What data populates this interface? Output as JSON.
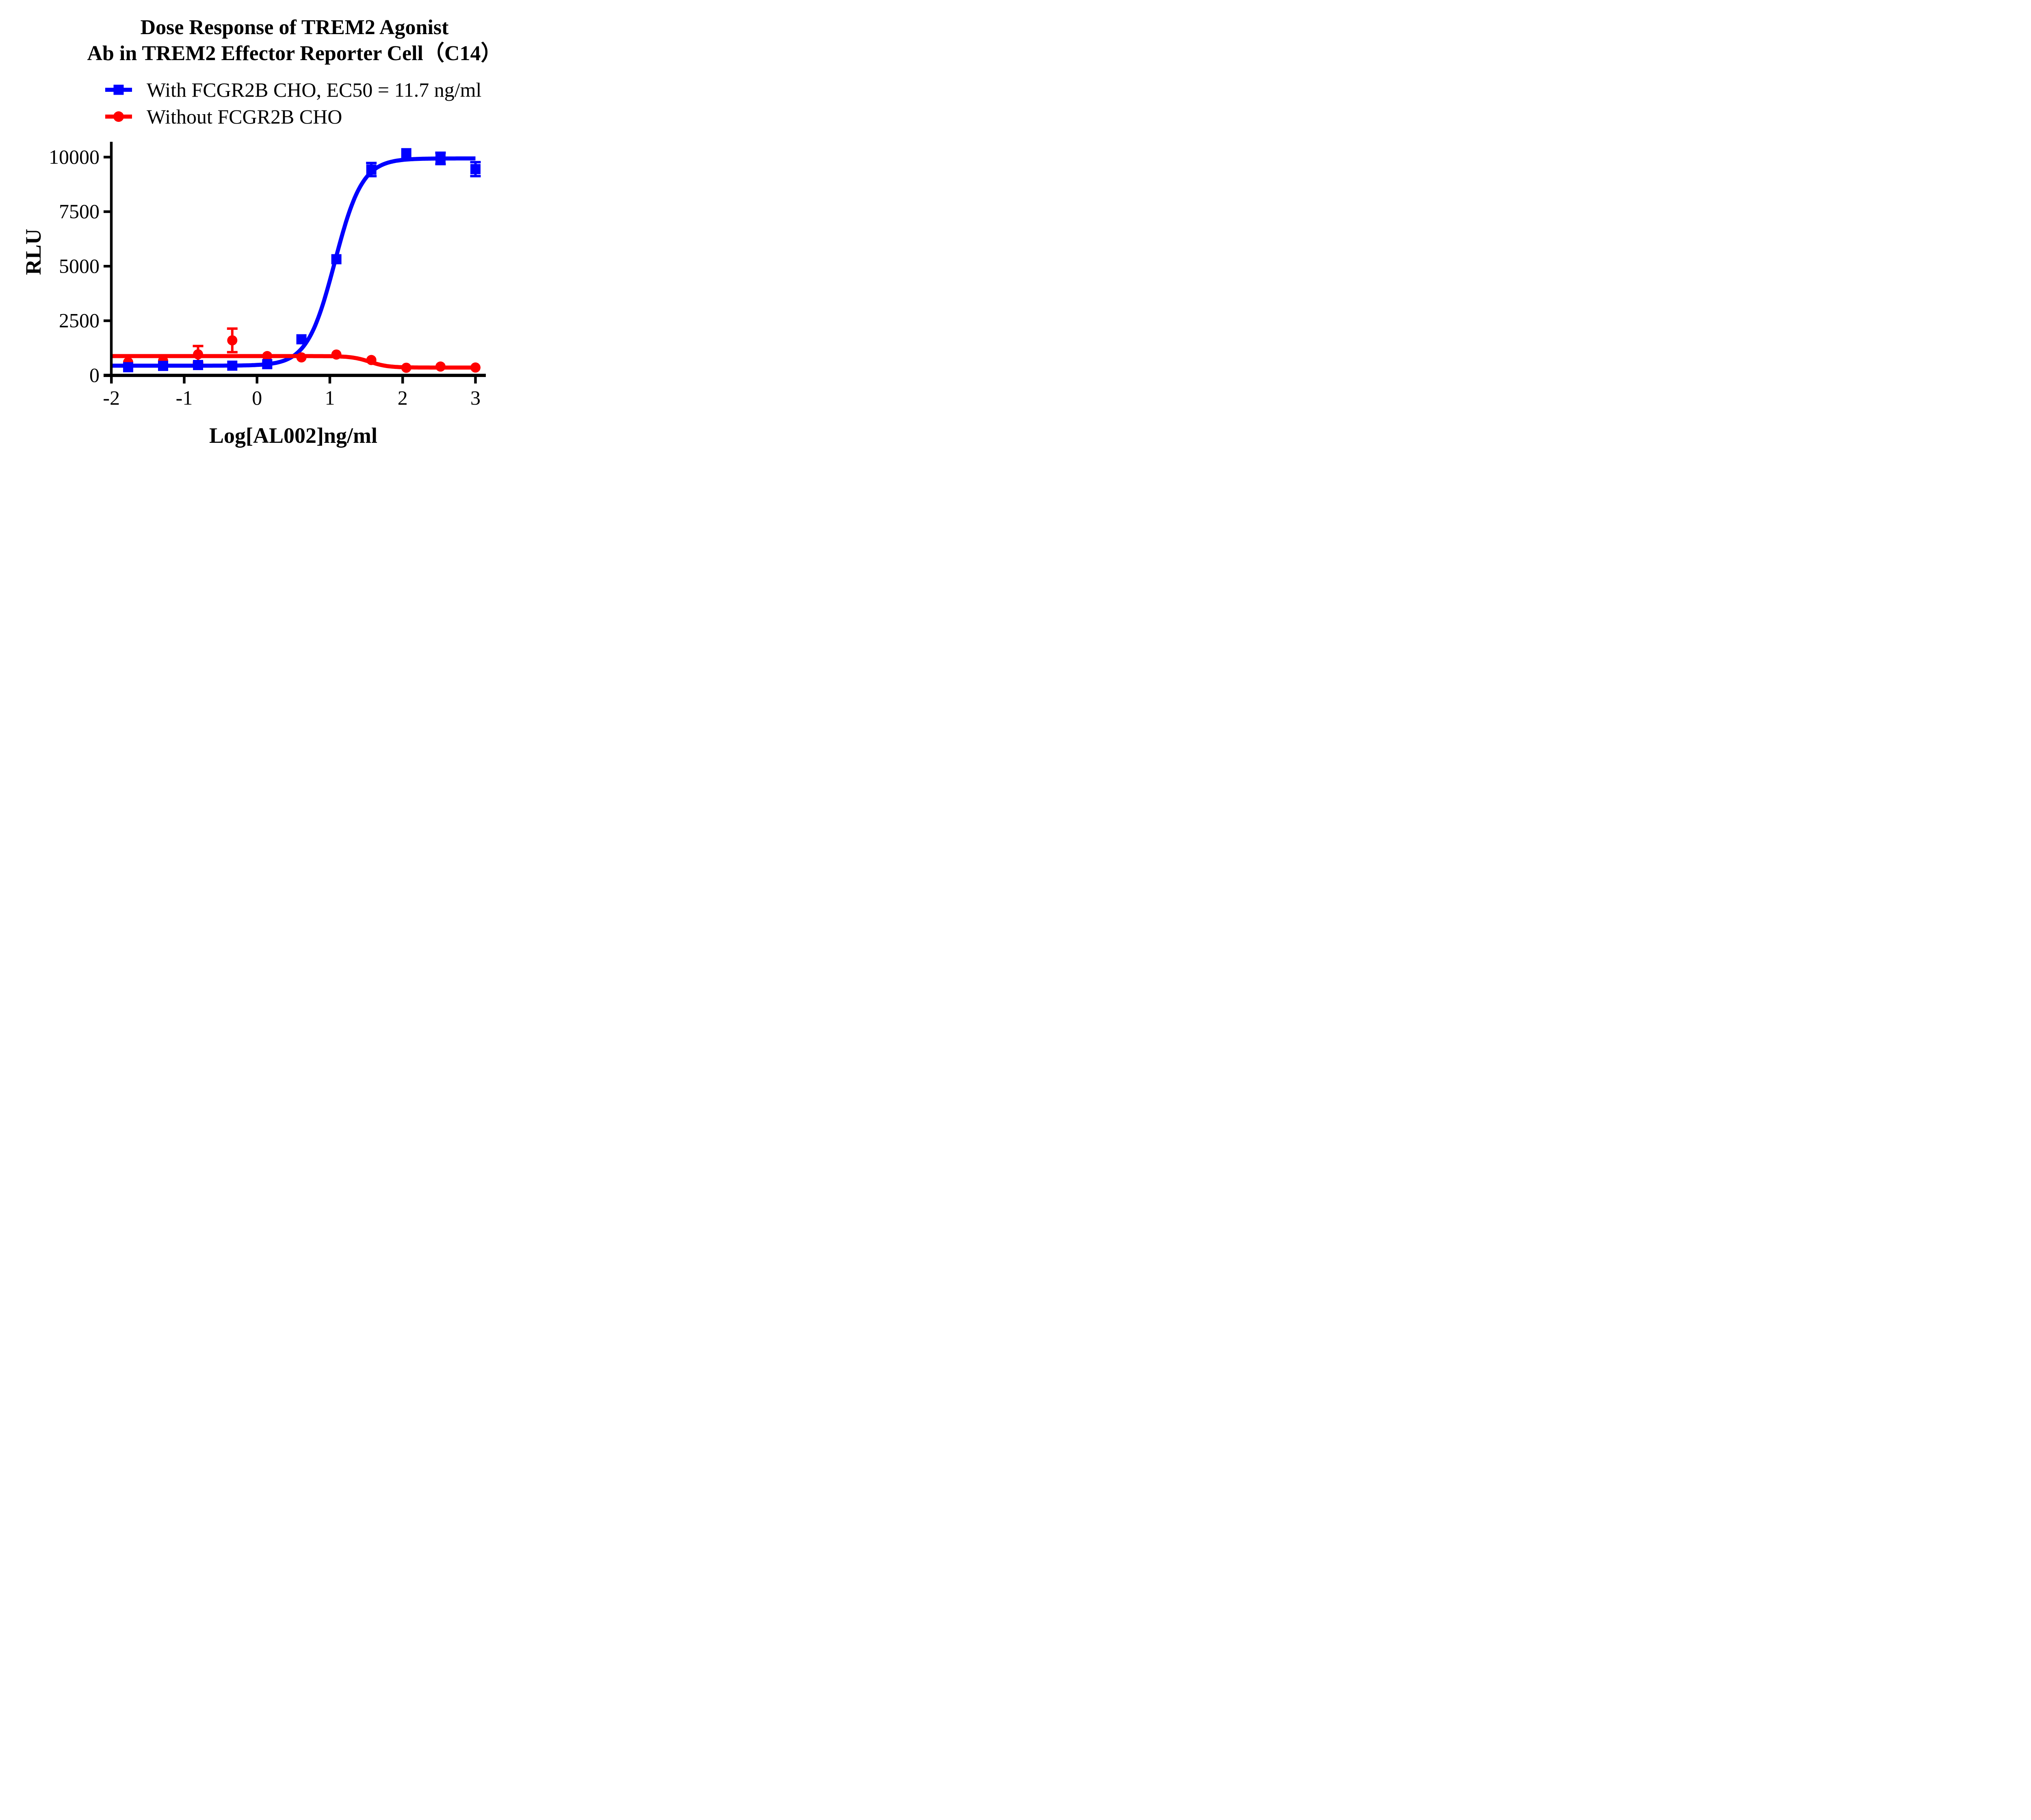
{
  "title": {
    "line1": "Dose Response of TREM2 Agonist",
    "line2": "Ab in TREM2 Effector Reporter Cell（C14）"
  },
  "chart_data": {
    "type": "line",
    "title": "Dose Response of TREM2 Agonist Ab in TREM2 Effector Reporter Cell（C14）",
    "title_lines": [
      "Dose Response of TREM2 Agonist",
      "Ab in TREM2 Effector Reporter Cell（C14）"
    ],
    "xlabel": "Log[AL002]ng/ml",
    "ylabel": "RLU",
    "x_ticks": [
      -2,
      -1,
      0,
      1,
      2,
      3
    ],
    "y_ticks": [
      0,
      2500,
      5000,
      7500,
      10000
    ],
    "ylim": [
      0,
      10000
    ],
    "xlim": [
      -2,
      3
    ],
    "grid": false,
    "legend_position": "top-left",
    "axis_color": "#000000",
    "background": "#FFFFFF",
    "series": [
      {
        "name": "With FCGR2B CHO, EC50 = 11.7 ng/ml",
        "color": "#0000FF",
        "marker": "square",
        "ec50_label": "EC50 = 11.7 ng/ml",
        "x": [
          -1.77,
          -1.29,
          -0.81,
          -0.34,
          0.14,
          0.61,
          1.09,
          1.57,
          2.05,
          2.52,
          3.0
        ],
        "y": [
          370,
          430,
          470,
          440,
          510,
          1650,
          5320,
          9430,
          10180,
          9940,
          9450
        ],
        "yerr": [
          0,
          0,
          0,
          0,
          0,
          0,
          0,
          300,
          0,
          260,
          320
        ],
        "fit": {
          "shape": "increasing",
          "bottom": 440,
          "top": 9940,
          "mid": 1.068,
          "hill": 2.3
        }
      },
      {
        "name": "Without FCGR2B CHO",
        "color": "#FF0000",
        "marker": "circle",
        "x": [
          -1.77,
          -1.29,
          -0.81,
          -0.34,
          0.14,
          0.61,
          1.09,
          1.57,
          2.05,
          2.52,
          3.0
        ],
        "y": [
          600,
          660,
          960,
          1600,
          880,
          820,
          950,
          700,
          345,
          400,
          355
        ],
        "yerr": [
          0,
          0,
          380,
          540,
          0,
          0,
          0,
          0,
          0,
          0,
          0
        ],
        "fit": {
          "shape": "decreasing",
          "bottom": 355,
          "top": 880,
          "mid": 1.55,
          "hill": 3.5
        }
      }
    ]
  }
}
